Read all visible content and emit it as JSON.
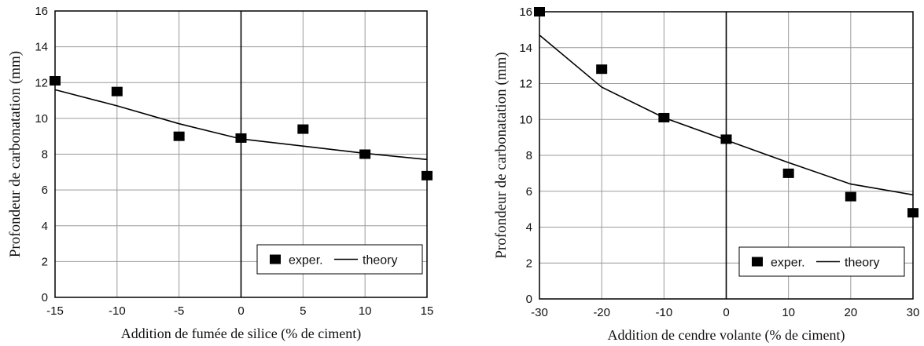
{
  "chart_data": [
    {
      "type": "scatter",
      "title": "",
      "xlabel": "Addition de fumée de silice (% de ciment)",
      "ylabel": "Profondeur de carbonatation (mm)",
      "xlim": [
        -15,
        15
      ],
      "ylim": [
        0,
        16
      ],
      "xticks": [
        "-15",
        "-10",
        "-5",
        "0",
        "5",
        "10",
        "15"
      ],
      "yticks": [
        "0",
        "2",
        "4",
        "6",
        "8",
        "10",
        "12",
        "14",
        "16"
      ],
      "grid": true,
      "legend_position": "bottom-right",
      "series": [
        {
          "name": "exper.",
          "kind": "markers",
          "marker": "square",
          "x": [
            -15,
            -10,
            -5,
            0,
            5,
            10,
            15
          ],
          "y": [
            12.1,
            11.5,
            9.0,
            8.9,
            9.4,
            8.0,
            6.8
          ]
        },
        {
          "name": "theory",
          "kind": "line",
          "x": [
            -15,
            -10,
            -5,
            0,
            5,
            10,
            15
          ],
          "y": [
            11.6,
            10.7,
            9.7,
            8.85,
            8.45,
            8.05,
            7.7
          ]
        }
      ]
    },
    {
      "type": "scatter",
      "title": "",
      "xlabel": "Addition de cendre volante (% de ciment)",
      "ylabel": "Profondeur de carbonatation (mm)",
      "xlim": [
        -30,
        30
      ],
      "ylim": [
        0,
        16
      ],
      "xticks": [
        "-30",
        "-20",
        "-10",
        "0",
        "10",
        "20",
        "30"
      ],
      "yticks": [
        "0",
        "2",
        "4",
        "6",
        "8",
        "10",
        "12",
        "14",
        "16"
      ],
      "grid": true,
      "legend_position": "bottom-right",
      "series": [
        {
          "name": "exper.",
          "kind": "markers",
          "marker": "square",
          "x": [
            -30,
            -20,
            -10,
            0,
            10,
            20,
            30
          ],
          "y": [
            16.0,
            12.8,
            10.1,
            8.9,
            7.0,
            5.7,
            4.8
          ]
        },
        {
          "name": "theory",
          "kind": "line",
          "x": [
            -30,
            -20,
            -10,
            0,
            10,
            20,
            30
          ],
          "y": [
            14.7,
            11.8,
            10.1,
            8.85,
            7.6,
            6.4,
            5.8
          ]
        }
      ]
    }
  ]
}
